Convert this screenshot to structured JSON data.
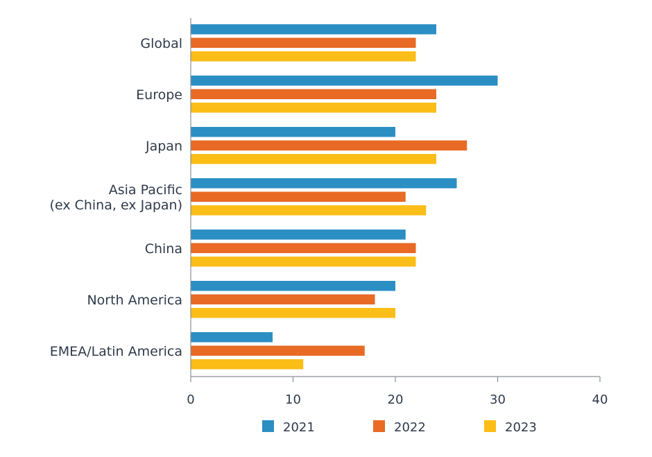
{
  "chart_data": {
    "type": "bar",
    "orientation": "horizontal",
    "categories": [
      [
        "Global"
      ],
      [
        "Europe"
      ],
      [
        "Japan"
      ],
      [
        "Asia Pacific",
        "(ex China, ex Japan)"
      ],
      [
        "China"
      ],
      [
        "North America"
      ],
      [
        "EMEA/Latin America"
      ]
    ],
    "series": [
      {
        "name": "2021",
        "color": "#2b8fc4",
        "values": [
          24,
          30,
          20,
          26,
          21,
          20,
          8
        ]
      },
      {
        "name": "2022",
        "color": "#e86a25",
        "values": [
          22,
          24,
          27,
          21,
          22,
          18,
          17
        ]
      },
      {
        "name": "2023",
        "color": "#fbbd17",
        "values": [
          22,
          24,
          24,
          23,
          22,
          20,
          11
        ]
      }
    ],
    "xlim": [
      0,
      40
    ],
    "xticks": [
      0,
      10,
      20,
      30,
      40
    ],
    "xlabel": "",
    "ylabel": "",
    "title": "",
    "grid": false,
    "legend_position": "bottom"
  }
}
